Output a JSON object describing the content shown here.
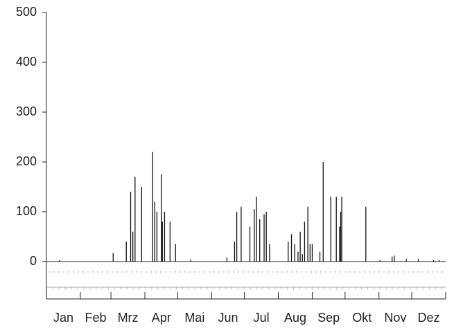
{
  "chart_data": {
    "type": "spike",
    "color": "#111111",
    "xlim": [
      0,
      365
    ],
    "xticks": [
      0,
      31,
      59,
      90,
      120,
      151,
      181,
      212,
      243,
      273,
      304,
      334,
      365
    ],
    "months": [
      "Jan",
      "Feb",
      "Mrz",
      "Apr",
      "Mai",
      "Jun",
      "Jul",
      "Aug",
      "Sep",
      "Okt",
      "Nov",
      "Dez"
    ],
    "ylim": [
      -75,
      500
    ],
    "yticks": [
      0,
      100,
      200,
      300,
      400,
      500
    ],
    "x": [
      12,
      61,
      73,
      77,
      79,
      81,
      87,
      97,
      99,
      101,
      105,
      106,
      108,
      113,
      118,
      132,
      165,
      172,
      174,
      178,
      186,
      190,
      192,
      195,
      199,
      201,
      204,
      221,
      224,
      227,
      230,
      232,
      234,
      236,
      239,
      241,
      243,
      250,
      253,
      260,
      265,
      268,
      269,
      270,
      292,
      305,
      316,
      318,
      329,
      340,
      354,
      359
    ],
    "values": [
      3,
      17,
      40,
      140,
      60,
      170,
      150,
      220,
      120,
      100,
      175,
      80,
      100,
      80,
      35,
      4,
      8,
      40,
      100,
      110,
      70,
      105,
      130,
      85,
      95,
      100,
      35,
      40,
      55,
      35,
      20,
      60,
      15,
      80,
      110,
      35,
      35,
      20,
      200,
      130,
      130,
      70,
      100,
      130,
      110,
      3,
      10,
      12,
      5,
      5,
      3,
      3
    ]
  }
}
